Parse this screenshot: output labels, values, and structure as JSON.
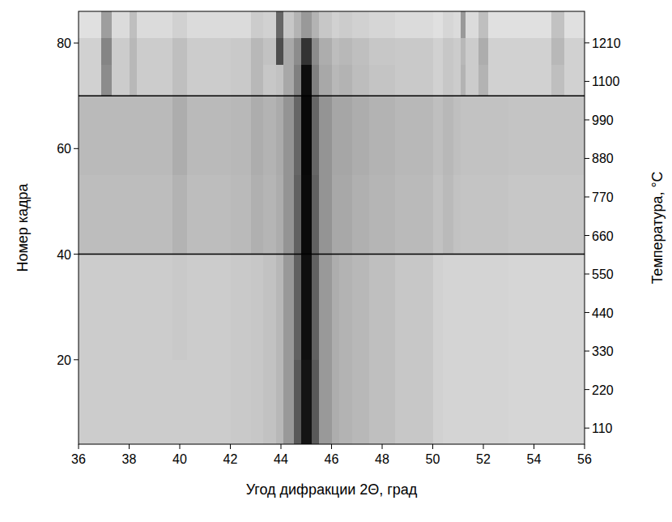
{
  "chart_data": {
    "type": "heatmap",
    "x_label": "Угод дифракции 2Θ, град",
    "y_label": "Номер кадра",
    "y2_label": "Температура, °C",
    "xlim": [
      36,
      56
    ],
    "xticks": [
      36,
      38,
      40,
      42,
      44,
      46,
      48,
      50,
      52,
      54,
      56
    ],
    "ylim": [
      4,
      86
    ],
    "yticks": [
      20,
      40,
      60,
      80
    ],
    "y2lim": [
      64,
      1300
    ],
    "y2ticks": [
      110,
      220,
      330,
      440,
      550,
      660,
      770,
      880,
      990,
      1100,
      1210
    ],
    "zlim": [
      0,
      100
    ],
    "hlines": [
      40,
      70
    ],
    "x_edges": [
      36,
      36.5,
      36.9,
      37.3,
      37.8,
      38.0,
      38.3,
      39,
      39.7,
      40.3,
      41,
      42,
      42.8,
      43.3,
      43.8,
      44.1,
      44.5,
      44.8,
      45.2,
      45.5,
      46,
      46.3,
      46.8,
      47.5,
      48.5,
      50,
      50.4,
      50.8,
      51.1,
      51.3,
      51.8,
      52.2,
      53,
      54.7,
      55.2,
      56
    ],
    "y_edges": [
      4,
      20,
      40,
      55,
      70,
      76,
      81,
      86
    ],
    "cells": [
      [
        20,
        20,
        20,
        20,
        20,
        20,
        20,
        20,
        20,
        20,
        20,
        21,
        22,
        24,
        28,
        40,
        65,
        92,
        65,
        40,
        32,
        30,
        28,
        25,
        22,
        18,
        17,
        17,
        17,
        17,
        17,
        17,
        16,
        16,
        16
      ],
      [
        20,
        20,
        20,
        20,
        20,
        20,
        20,
        20,
        21,
        20,
        20,
        21,
        22,
        24,
        28,
        40,
        62,
        94,
        62,
        40,
        32,
        30,
        28,
        25,
        22,
        18,
        17,
        17,
        17,
        17,
        17,
        17,
        16,
        16,
        16
      ],
      [
        26,
        26,
        26,
        26,
        26,
        26,
        26,
        26,
        30,
        26,
        26,
        27,
        31,
        29,
        32,
        42,
        62,
        96,
        62,
        42,
        34,
        34,
        31,
        29,
        27,
        24,
        27,
        24,
        23,
        23,
        23,
        23,
        22,
        22,
        22
      ],
      [
        27,
        27,
        27,
        27,
        27,
        27,
        27,
        27,
        32,
        27,
        27,
        28,
        32,
        30,
        33,
        42,
        60,
        97,
        60,
        42,
        35,
        35,
        32,
        30,
        28,
        25,
        28,
        25,
        24,
        24,
        24,
        24,
        23,
        23,
        23
      ],
      [
        18,
        18,
        45,
        20,
        20,
        28,
        20,
        20,
        25,
        20,
        20,
        21,
        28,
        22,
        24,
        34,
        50,
        95,
        50,
        34,
        28,
        30,
        26,
        23,
        21,
        18,
        22,
        20,
        30,
        20,
        30,
        18,
        18,
        25,
        18
      ],
      [
        18,
        18,
        48,
        20,
        20,
        28,
        20,
        20,
        25,
        20,
        20,
        21,
        28,
        24,
        70,
        34,
        45,
        80,
        45,
        32,
        26,
        28,
        25,
        22,
        21,
        18,
        22,
        20,
        28,
        20,
        32,
        18,
        18,
        28,
        18
      ],
      [
        12,
        12,
        38,
        14,
        14,
        25,
        14,
        14,
        18,
        14,
        14,
        14,
        20,
        18,
        60,
        22,
        30,
        40,
        30,
        22,
        18,
        20,
        18,
        16,
        14,
        12,
        16,
        14,
        40,
        14,
        25,
        12,
        12,
        24,
        12
      ]
    ]
  }
}
